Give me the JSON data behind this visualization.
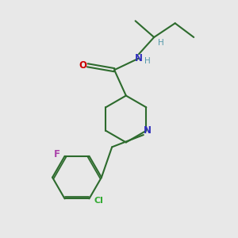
{
  "background_color": "#e8e8e8",
  "bond_color": "#2d6b2d",
  "nitrogen_color": "#3030bb",
  "oxygen_color": "#cc0000",
  "fluorine_color": "#aa44aa",
  "chlorine_color": "#33aa33",
  "h_color": "#5599aa",
  "line_width": 1.5,
  "figsize": [
    3.0,
    3.0
  ],
  "dpi": 100,
  "xlim": [
    0,
    10
  ],
  "ylim": [
    0,
    10
  ]
}
